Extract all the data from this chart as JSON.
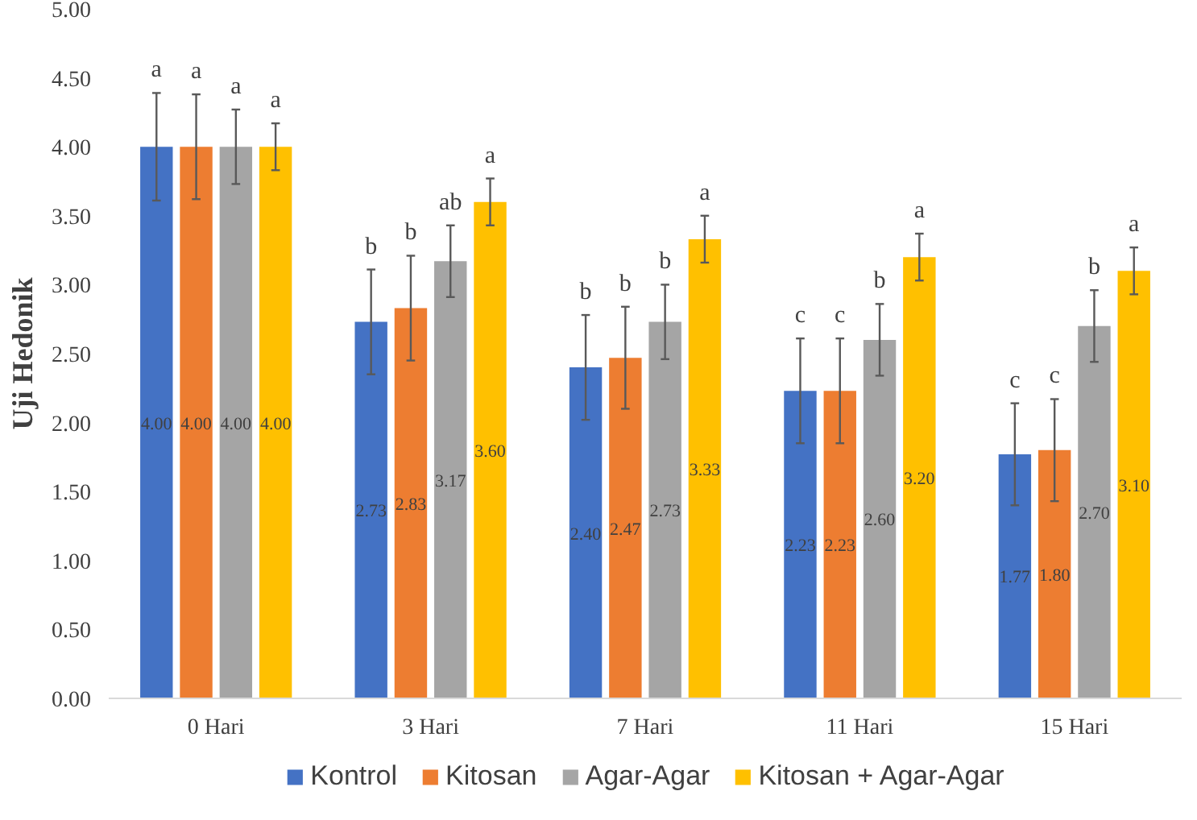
{
  "chart_data": {
    "type": "bar",
    "ylabel": "Uji Hedonik",
    "categories": [
      "0 Hari",
      "3 Hari",
      "7 Hari",
      "11 Hari",
      "15 Hari"
    ],
    "series": [
      {
        "name": "Kontrol",
        "color": "#4472c4",
        "values": [
          4.0,
          2.73,
          2.4,
          2.23,
          1.77
        ],
        "value_labels": [
          "4.00",
          "2.73",
          "2.40",
          "2.23",
          "1.77"
        ],
        "errors": [
          0.39,
          0.38,
          0.38,
          0.38,
          0.37
        ]
      },
      {
        "name": "Kitosan",
        "color": "#ed7d31",
        "values": [
          4.0,
          2.83,
          2.47,
          2.23,
          1.8
        ],
        "value_labels": [
          "4.00",
          "2.83",
          "2.47",
          "2.23",
          "1.80"
        ],
        "errors": [
          0.38,
          0.38,
          0.37,
          0.38,
          0.37
        ]
      },
      {
        "name": "Agar-Agar",
        "color": "#a5a5a5",
        "values": [
          4.0,
          3.17,
          2.73,
          2.6,
          2.7
        ],
        "value_labels": [
          "4.00",
          "3.17",
          "2.73",
          "2.60",
          "2.70"
        ],
        "errors": [
          0.27,
          0.26,
          0.27,
          0.26,
          0.26
        ]
      },
      {
        "name": "Kitosan + Agar-Agar",
        "color": "#ffc000",
        "values": [
          4.0,
          3.6,
          3.33,
          3.2,
          3.1
        ],
        "value_labels": [
          "4.00",
          "3.60",
          "3.33",
          "3.20",
          "3.10"
        ],
        "errors": [
          0.17,
          0.17,
          0.17,
          0.17,
          0.17
        ]
      }
    ],
    "ylim": [
      0,
      5
    ],
    "yticks": [
      {
        "value": 0,
        "label": "0.00"
      },
      {
        "value": 0.5,
        "label": "0.50"
      },
      {
        "value": 1,
        "label": "1.00"
      },
      {
        "value": 1.5,
        "label": "1.50"
      },
      {
        "value": 2,
        "label": "2.00"
      },
      {
        "value": 2.5,
        "label": "2.50"
      },
      {
        "value": 3,
        "label": "3.00"
      },
      {
        "value": 3.5,
        "label": "3.50"
      },
      {
        "value": 4,
        "label": "4.00"
      },
      {
        "value": 4.5,
        "label": "4.50"
      },
      {
        "value": 5,
        "label": "5.00"
      }
    ],
    "legend": "bottom",
    "grid": false,
    "annotations": [
      "a",
      "a",
      "a",
      "a",
      "b",
      "b",
      "ab",
      "a",
      "b",
      "b",
      "b",
      "a",
      "c",
      "c",
      "b",
      "a",
      "c",
      "c",
      "b",
      "a"
    ]
  }
}
